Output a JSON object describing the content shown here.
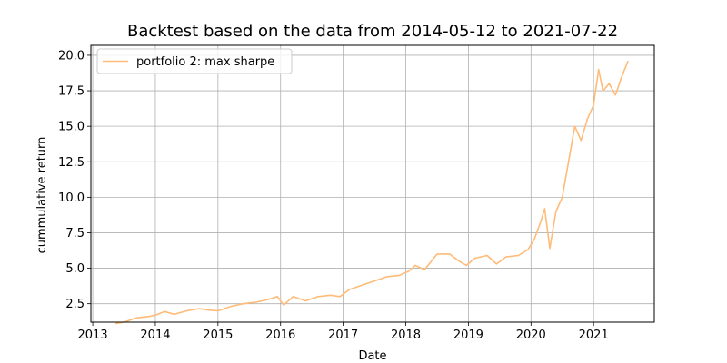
{
  "chart_data": {
    "type": "line",
    "title": "Backtest based on the data from 2014-05-12  to  2021-07-22",
    "xlabel": "Date",
    "ylabel": "cummulative return",
    "xlim": [
      2012.97,
      2021.97
    ],
    "ylim": [
      1.2,
      20.7
    ],
    "x_ticks": [
      "2013",
      "2014",
      "2015",
      "2016",
      "2017",
      "2018",
      "2019",
      "2020",
      "2021"
    ],
    "y_ticks": [
      "2.5",
      "5.0",
      "7.5",
      "10.0",
      "12.5",
      "15.0",
      "17.5",
      "20.0"
    ],
    "grid": true,
    "legend_position": "top-left",
    "series": [
      {
        "name": "portfolio 2: max sharpe",
        "color": "#ffbb78",
        "x": [
          2013.36,
          2013.5,
          2013.7,
          2013.9,
          2014.0,
          2014.15,
          2014.3,
          2014.5,
          2014.7,
          2014.85,
          2015.0,
          2015.2,
          2015.4,
          2015.6,
          2015.8,
          2015.95,
          2016.05,
          2016.2,
          2016.4,
          2016.6,
          2016.8,
          2016.95,
          2017.1,
          2017.3,
          2017.5,
          2017.7,
          2017.9,
          2018.05,
          2018.15,
          2018.3,
          2018.5,
          2018.7,
          2018.85,
          2018.97,
          2019.1,
          2019.3,
          2019.45,
          2019.6,
          2019.8,
          2019.95,
          2020.05,
          2020.15,
          2020.22,
          2020.3,
          2020.4,
          2020.5,
          2020.6,
          2020.7,
          2020.8,
          2020.9,
          2021.0,
          2021.08,
          2021.15,
          2021.25,
          2021.35,
          2021.45,
          2021.55
        ],
        "y": [
          1.1,
          1.2,
          1.5,
          1.6,
          1.7,
          1.95,
          1.75,
          2.0,
          2.15,
          2.05,
          2.0,
          2.3,
          2.5,
          2.6,
          2.8,
          3.0,
          2.4,
          3.0,
          2.7,
          3.0,
          3.1,
          3.0,
          3.5,
          3.8,
          4.1,
          4.4,
          4.5,
          4.8,
          5.2,
          4.9,
          6.0,
          6.0,
          5.5,
          5.2,
          5.7,
          5.9,
          5.3,
          5.8,
          5.9,
          6.3,
          7.0,
          8.2,
          9.2,
          6.4,
          9.0,
          10.0,
          12.5,
          15.0,
          14.0,
          15.5,
          16.5,
          19.0,
          17.5,
          18.0,
          17.2,
          18.5,
          19.6
        ]
      }
    ]
  }
}
